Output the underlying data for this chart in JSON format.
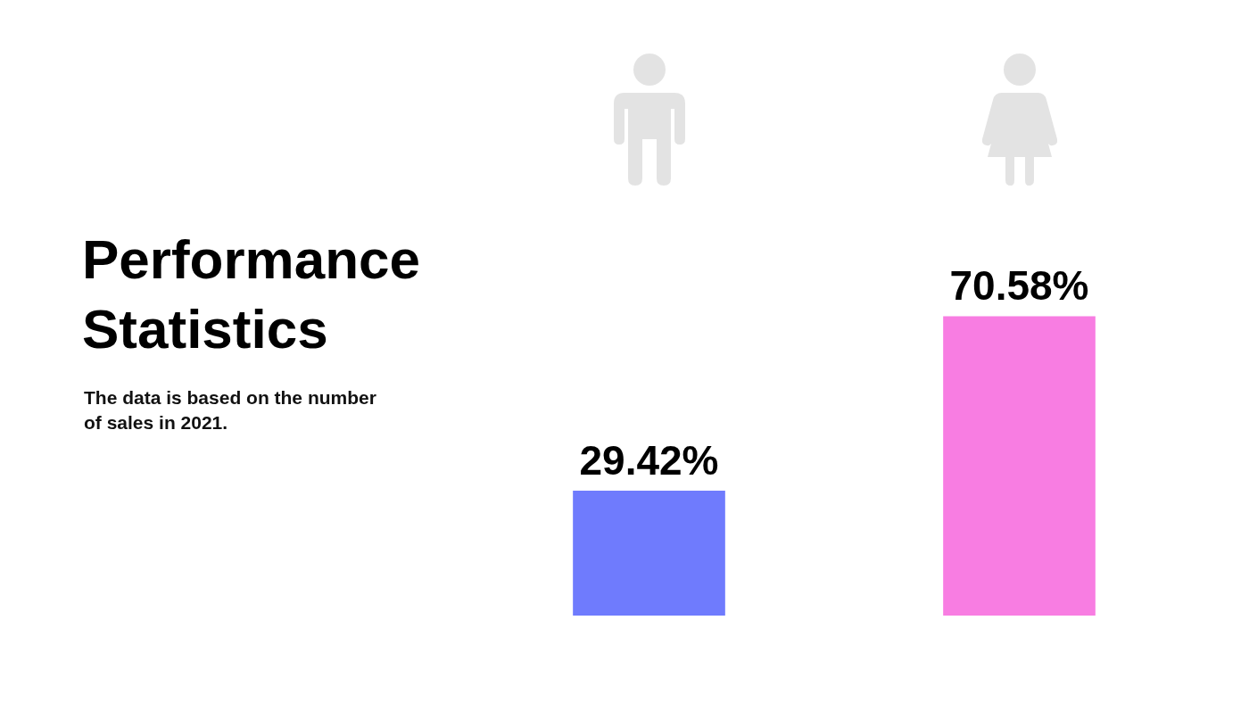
{
  "chart_data": {
    "type": "bar",
    "title": "Performance Statistics",
    "subtitle": "The data is based on the number of sales in 2021.",
    "categories": [
      null,
      null
    ],
    "values": [
      29.42,
      70.58
    ],
    "colors": [
      "#6f7bfd",
      "#f87de2"
    ],
    "value_labels": [
      "29.42%",
      "70.58%"
    ],
    "tick_labels": false
  }
}
